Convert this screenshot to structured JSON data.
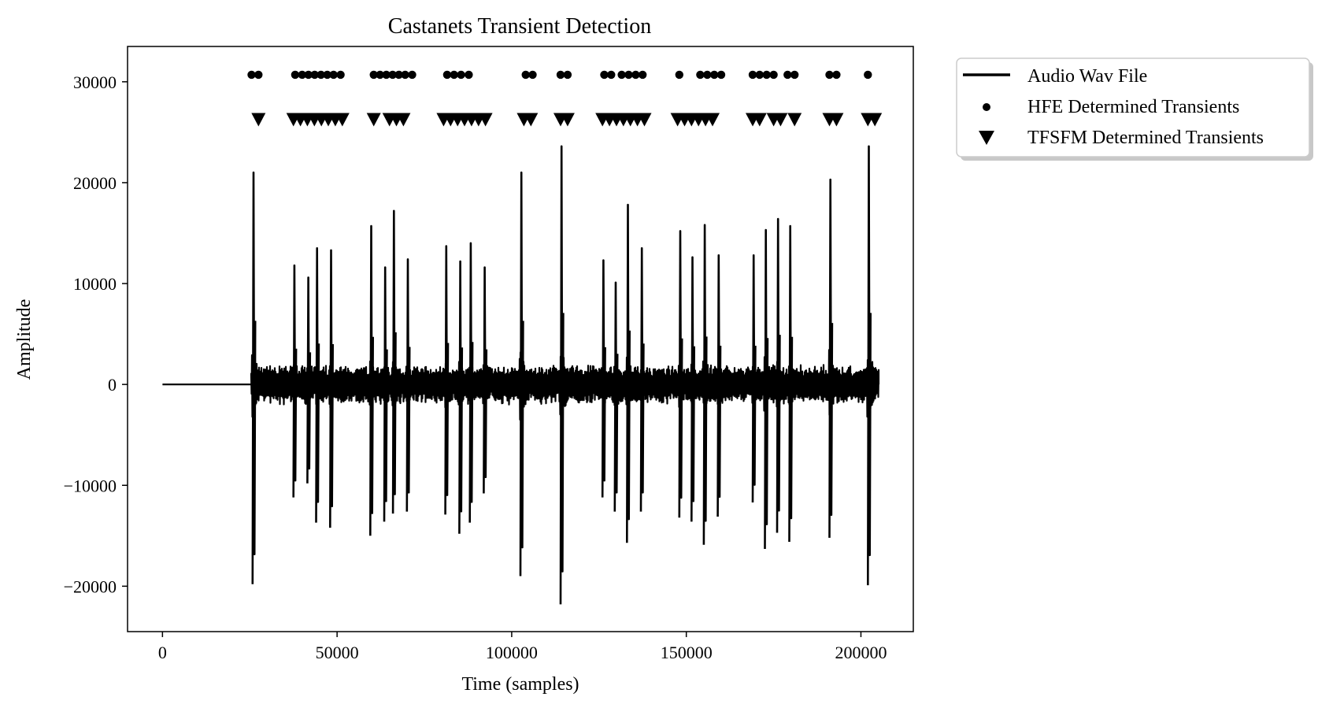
{
  "chart_data": {
    "type": "line",
    "title": "Castanets Transient Detection",
    "xlabel": "Time (samples)",
    "ylabel": "Amplitude",
    "xlim": [
      -10000,
      215000
    ],
    "ylim": [
      -24500,
      33500
    ],
    "xticks": [
      0,
      50000,
      100000,
      150000,
      200000
    ],
    "xtick_labels": [
      "0",
      "50000",
      "100000",
      "150000",
      "200000"
    ],
    "yticks": [
      -20000,
      -10000,
      0,
      10000,
      20000,
      30000
    ],
    "ytick_labels": [
      "−20000",
      "−10000",
      "0",
      "10000",
      "20000",
      "30000"
    ],
    "grid": false,
    "legend_position": "outside upper right",
    "colors": {
      "line": "#000000",
      "marker": "#000000",
      "axes": "#000000"
    },
    "series": [
      {
        "name": "Audio Wav File",
        "kind": "line",
        "signal_start": 0,
        "signal_end": 205000,
        "silent_until": 25500,
        "noise_amplitude": 2000,
        "transients": [
          {
            "x": 25800,
            "peak": 21000,
            "trough": -19800
          },
          {
            "x": 37500,
            "peak": 11800,
            "trough": -11200
          },
          {
            "x": 41500,
            "peak": 10600,
            "trough": -9800
          },
          {
            "x": 44000,
            "peak": 13500,
            "trough": -13700
          },
          {
            "x": 48000,
            "peak": 13300,
            "trough": -14200
          },
          {
            "x": 59500,
            "peak": 15700,
            "trough": -15000
          },
          {
            "x": 63500,
            "peak": 11600,
            "trough": -13600
          },
          {
            "x": 66000,
            "peak": 17200,
            "trough": -12800
          },
          {
            "x": 70000,
            "peak": 12400,
            "trough": -12600
          },
          {
            "x": 81000,
            "peak": 13700,
            "trough": -12900
          },
          {
            "x": 85000,
            "peak": 12200,
            "trough": -14800
          },
          {
            "x": 88000,
            "peak": 14000,
            "trough": -13700
          },
          {
            "x": 92000,
            "peak": 11600,
            "trough": -10800
          },
          {
            "x": 102500,
            "peak": 21000,
            "trough": -19000
          },
          {
            "x": 114000,
            "peak": 23600,
            "trough": -21800
          },
          {
            "x": 126000,
            "peak": 12300,
            "trough": -11200
          },
          {
            "x": 129500,
            "peak": 10100,
            "trough": -12600
          },
          {
            "x": 133000,
            "peak": 17800,
            "trough": -15700
          },
          {
            "x": 137000,
            "peak": 13500,
            "trough": -12600
          },
          {
            "x": 148000,
            "peak": 15200,
            "trough": -13200
          },
          {
            "x": 151500,
            "peak": 12600,
            "trough": -13600
          },
          {
            "x": 155000,
            "peak": 15800,
            "trough": -15900
          },
          {
            "x": 159000,
            "peak": 12800,
            "trough": -13100
          },
          {
            "x": 169000,
            "peak": 12800,
            "trough": -11700
          },
          {
            "x": 172500,
            "peak": 15300,
            "trough": -16300
          },
          {
            "x": 176000,
            "peak": 16400,
            "trough": -14700
          },
          {
            "x": 179500,
            "peak": 15700,
            "trough": -15600
          },
          {
            "x": 191000,
            "peak": 20300,
            "trough": -15200
          },
          {
            "x": 202000,
            "peak": 23600,
            "trough": -19900
          }
        ]
      },
      {
        "name": "HFE Determined Transients",
        "kind": "scatter",
        "marker": "circle",
        "y": 30700,
        "x": [
          25500,
          27500,
          38000,
          40000,
          41800,
          43600,
          45400,
          47200,
          49000,
          51000,
          60500,
          62300,
          64100,
          65900,
          67700,
          69500,
          71500,
          81500,
          83500,
          85500,
          87700,
          104000,
          106000,
          114000,
          116000,
          126500,
          128500,
          131500,
          133500,
          135500,
          137500,
          148000,
          154000,
          156000,
          158000,
          160000,
          169000,
          171000,
          173000,
          175000,
          179000,
          181000,
          191000,
          193000,
          202000
        ]
      },
      {
        "name": "TFSFM Determined Transients",
        "kind": "scatter",
        "marker": "triangle_down",
        "y": 26200,
        "x": [
          27500,
          37500,
          39500,
          41500,
          43500,
          45500,
          47500,
          49500,
          51500,
          60500,
          65000,
          67000,
          69000,
          80500,
          82500,
          84500,
          86500,
          88500,
          90500,
          92500,
          103500,
          105500,
          114000,
          116000,
          126000,
          128000,
          130000,
          132000,
          134000,
          136000,
          138000,
          147500,
          149500,
          151500,
          153500,
          155500,
          157500,
          169000,
          171000,
          175000,
          177000,
          181000,
          191000,
          193000,
          202000,
          204000
        ]
      }
    ]
  }
}
